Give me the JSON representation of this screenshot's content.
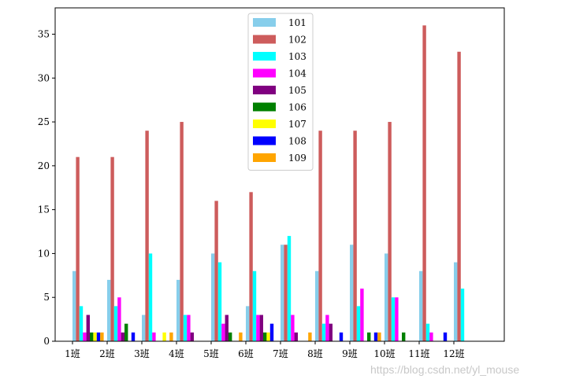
{
  "chart_data": {
    "type": "bar",
    "categories": [
      "1班",
      "2班",
      "3班",
      "4班",
      "5班",
      "6班",
      "7班",
      "8班",
      "9班",
      "10班",
      "11班",
      "12班"
    ],
    "ylim": [
      0,
      38
    ],
    "yticks": [
      0,
      5,
      10,
      15,
      20,
      25,
      30,
      35
    ],
    "legend_position": "top-center",
    "series": [
      {
        "name": "101",
        "color": "#87ceeb",
        "values": [
          8,
          7,
          3,
          7,
          10,
          4,
          11,
          8,
          11,
          10,
          8,
          9
        ]
      },
      {
        "name": "102",
        "color": "#cd5c5c",
        "values": [
          21,
          21,
          24,
          25,
          16,
          17,
          11,
          24,
          24,
          25,
          36,
          33
        ]
      },
      {
        "name": "103",
        "color": "#00ffff",
        "values": [
          4,
          4,
          10,
          3,
          9,
          8,
          12,
          2,
          4,
          5,
          2,
          6
        ]
      },
      {
        "name": "104",
        "color": "#ff00ff",
        "values": [
          1,
          5,
          1,
          3,
          2,
          3,
          3,
          3,
          6,
          5,
          1,
          0
        ]
      },
      {
        "name": "105",
        "color": "#800080",
        "values": [
          3,
          1,
          0,
          1,
          3,
          3,
          1,
          2,
          0,
          0,
          0,
          0
        ]
      },
      {
        "name": "106",
        "color": "#008000",
        "values": [
          1,
          2,
          0,
          0,
          1,
          1,
          0,
          0,
          1,
          1,
          0,
          0
        ]
      },
      {
        "name": "107",
        "color": "#ffff00",
        "values": [
          1,
          0,
          1,
          0,
          0,
          1,
          0,
          0,
          0,
          0,
          0,
          0
        ]
      },
      {
        "name": "108",
        "color": "#0000ff",
        "values": [
          1,
          1,
          0,
          0,
          0,
          2,
          0,
          1,
          1,
          0,
          1,
          0
        ]
      },
      {
        "name": "109",
        "color": "#ffa500",
        "values": [
          1,
          0,
          1,
          0,
          1,
          0,
          1,
          0,
          1,
          0,
          0,
          0
        ]
      }
    ]
  },
  "watermark": "https://blog.csdn.net/yl_mouse"
}
